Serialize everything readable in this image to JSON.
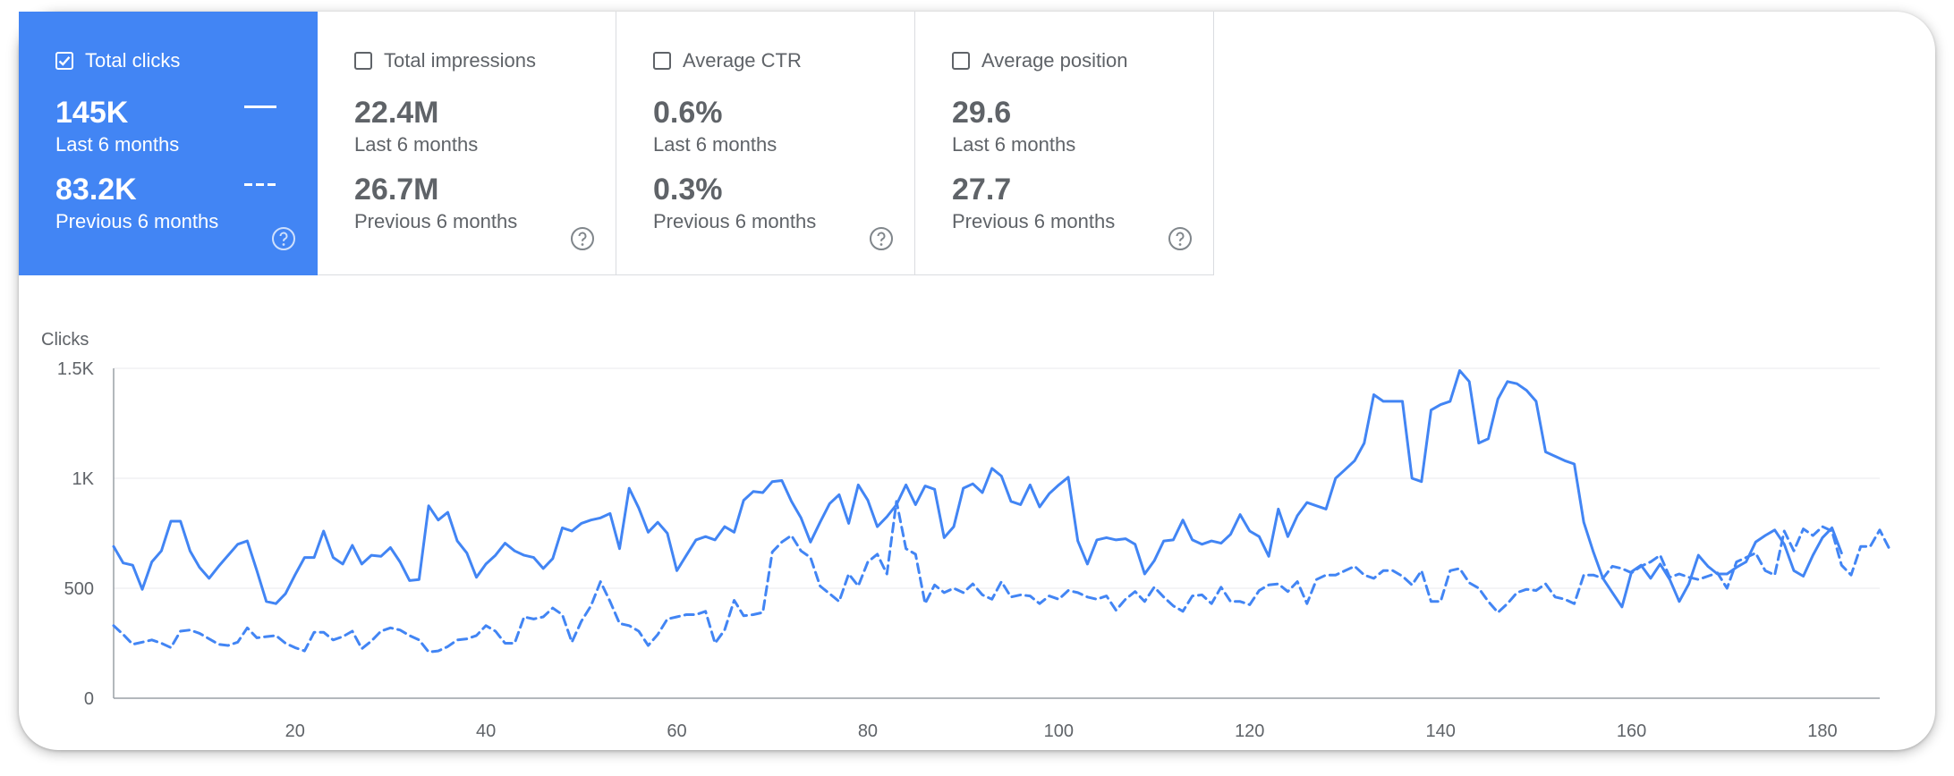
{
  "metrics": [
    {
      "label": "Total clicks",
      "checked": true,
      "value": "145K",
      "period": "Last 6 months",
      "prev_value": "83.2K",
      "prev_period": "Previous 6 months"
    },
    {
      "label": "Total impressions",
      "checked": false,
      "value": "22.4M",
      "period": "Last 6 months",
      "prev_value": "26.7M",
      "prev_period": "Previous 6 months"
    },
    {
      "label": "Average CTR",
      "checked": false,
      "value": "0.6%",
      "period": "Last 6 months",
      "prev_value": "0.3%",
      "prev_period": "Previous 6 months"
    },
    {
      "label": "Average position",
      "checked": false,
      "value": "29.6",
      "period": "Last 6 months",
      "prev_value": "27.7",
      "prev_period": "Previous 6 months"
    }
  ],
  "colors": {
    "accent": "#4285f4",
    "text": "#5f6368",
    "divider": "#dadce0"
  },
  "chart_data": {
    "type": "line",
    "ylabel": "Clicks",
    "ylim": [
      0,
      1500
    ],
    "yticks": [
      0,
      500,
      1000,
      1500
    ],
    "ytick_labels": [
      "0",
      "500",
      "1K",
      "1.5K"
    ],
    "xlim": [
      1,
      186
    ],
    "xticks": [
      20,
      40,
      60,
      80,
      100,
      120,
      140,
      160,
      180
    ],
    "grid": true,
    "series": [
      {
        "style": "solid",
        "values": [
          690,
          615,
          605,
          495,
          620,
          670,
          805,
          805,
          670,
          595,
          545,
          600,
          650,
          700,
          715,
          580,
          440,
          430,
          475,
          560,
          640,
          640,
          760,
          640,
          610,
          695,
          610,
          650,
          645,
          685,
          620,
          535,
          540,
          875,
          810,
          845,
          715,
          660,
          550,
          610,
          650,
          705,
          670,
          650,
          640,
          590,
          635,
          775,
          760,
          795,
          810,
          820,
          840,
          680,
          955,
          865,
          755,
          800,
          750,
          580,
          650,
          720,
          735,
          720,
          780,
          755,
          900,
          940,
          935,
          985,
          990,
          895,
          820,
          710,
          800,
          885,
          925,
          795,
          970,
          900,
          780,
          825,
          880,
          970,
          880,
          965,
          950,
          730,
          780,
          955,
          975,
          935,
          1045,
          1010,
          895,
          880,
          970,
          870,
          930,
          970,
          1005,
          715,
          610,
          720,
          730,
          720,
          725,
          700,
          565,
          625,
          715,
          720,
          810,
          720,
          700,
          715,
          705,
          745,
          835,
          760,
          735,
          645,
          860,
          735,
          830,
          890,
          875,
          860,
          1000,
          1040,
          1080,
          1160,
          1380,
          1350,
          1350,
          1350,
          1000,
          985,
          1310,
          1335,
          1350,
          1490,
          1440,
          1160,
          1180,
          1360,
          1440,
          1430,
          1400,
          1350,
          1120,
          1100,
          1080,
          1065,
          800,
          665,
          545,
          480,
          415,
          575,
          605,
          545,
          610,
          540,
          440,
          520,
          650,
          600,
          565,
          565,
          595,
          620,
          710,
          740,
          765,
          700,
          580,
          555,
          650,
          730,
          775,
          660
        ]
      },
      {
        "style": "dashed",
        "values": [
          330,
          290,
          245,
          255,
          265,
          250,
          230,
          305,
          310,
          295,
          270,
          245,
          240,
          255,
          320,
          275,
          280,
          285,
          250,
          230,
          215,
          300,
          300,
          265,
          280,
          305,
          225,
          260,
          305,
          320,
          310,
          285,
          265,
          210,
          215,
          235,
          265,
          270,
          285,
          330,
          305,
          250,
          250,
          370,
          360,
          370,
          410,
          380,
          255,
          350,
          420,
          530,
          440,
          340,
          330,
          305,
          240,
          290,
          360,
          370,
          380,
          380,
          395,
          250,
          310,
          445,
          375,
          380,
          390,
          665,
          710,
          740,
          670,
          640,
          510,
          475,
          440,
          565,
          510,
          620,
          655,
          565,
          895,
          680,
          655,
          430,
          515,
          480,
          500,
          480,
          520,
          470,
          450,
          530,
          460,
          470,
          465,
          430,
          465,
          450,
          490,
          480,
          460,
          450,
          465,
          400,
          450,
          485,
          440,
          505,
          460,
          420,
          395,
          465,
          470,
          430,
          505,
          440,
          440,
          425,
          490,
          515,
          520,
          485,
          530,
          430,
          540,
          560,
          560,
          580,
          600,
          560,
          545,
          580,
          580,
          555,
          515,
          580,
          440,
          440,
          580,
          590,
          525,
          500,
          440,
          390,
          430,
          480,
          495,
          490,
          520,
          460,
          450,
          430,
          560,
          560,
          545,
          600,
          590,
          570,
          600,
          620,
          650,
          550,
          565,
          550,
          540,
          555,
          570,
          500,
          620,
          640,
          660,
          580,
          560,
          760,
          670,
          770,
          740,
          780,
          760,
          605,
          560,
          690,
          690,
          765,
          680
        ]
      }
    ]
  }
}
